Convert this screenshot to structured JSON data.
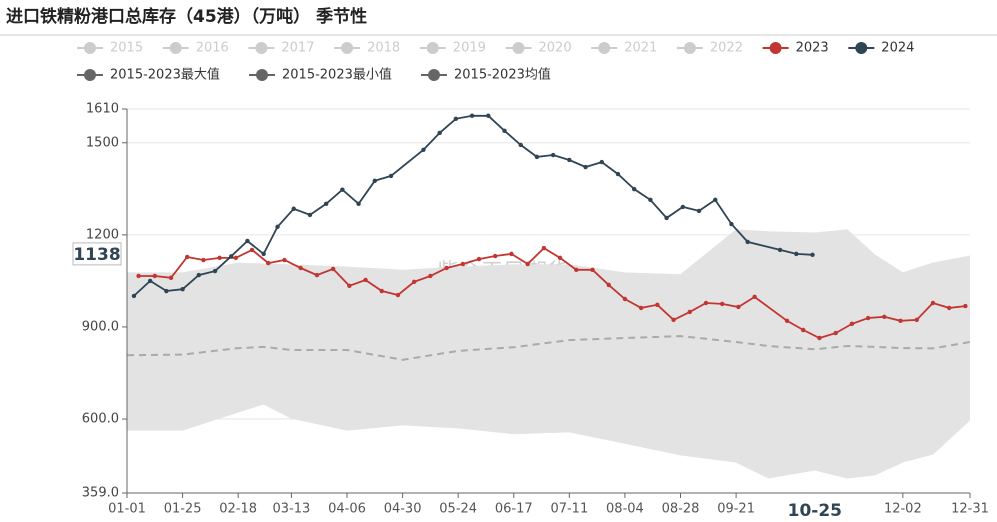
{
  "chart_data": {
    "type": "line",
    "title": "进口铁精粉港口总库存（45港）（万吨） 季节性",
    "watermark": "紫金天风期货",
    "ylim": [
      359,
      1610
    ],
    "yticks": [
      {
        "value": 359,
        "label": "359.0"
      },
      {
        "value": 600,
        "label": "600.0"
      },
      {
        "value": 900,
        "label": "900.0"
      },
      1200,
      1500,
      1610
    ],
    "xticks": [
      "01-01",
      "01-25",
      "02-18",
      "03-13",
      "04-06",
      "04-30",
      "05-24",
      "06-17",
      "07-11",
      "08-04",
      "08-28",
      "09-21",
      "12-02",
      "12-31"
    ],
    "grid": true,
    "axis_pointer": {
      "x": "10-25",
      "y": 1138
    },
    "series": [
      {
        "name": "2015",
        "color": "#cccccc",
        "hidden": true
      },
      {
        "name": "2016",
        "color": "#cccccc",
        "hidden": true
      },
      {
        "name": "2017",
        "color": "#cccccc",
        "hidden": true
      },
      {
        "name": "2018",
        "color": "#cccccc",
        "hidden": true
      },
      {
        "name": "2019",
        "color": "#cccccc",
        "hidden": true
      },
      {
        "name": "2020",
        "color": "#cccccc",
        "hidden": true
      },
      {
        "name": "2021",
        "color": "#cccccc",
        "hidden": true
      },
      {
        "name": "2022",
        "color": "#cccccc",
        "hidden": true
      },
      {
        "name": "2023",
        "color": "#c23531",
        "x": [
          "01-06",
          "01-13",
          "01-20",
          "01-27",
          "02-03",
          "02-10",
          "02-17",
          "02-24",
          "03-03",
          "03-10",
          "03-17",
          "03-24",
          "03-31",
          "04-07",
          "04-14",
          "04-21",
          "04-28",
          "05-05",
          "05-12",
          "05-19",
          "05-26",
          "06-02",
          "06-09",
          "06-16",
          "06-23",
          "06-30",
          "07-07",
          "07-14",
          "07-21",
          "07-28",
          "08-04",
          "08-11",
          "08-18",
          "08-25",
          "09-01",
          "09-08",
          "09-15",
          "09-22",
          "09-29",
          "10-13",
          "10-20",
          "10-27",
          "11-03",
          "11-10",
          "11-17",
          "11-24",
          "12-01",
          "12-08",
          "12-15",
          "12-22",
          "12-29"
        ],
        "values": [
          1066,
          1066,
          1060,
          1128,
          1118,
          1125,
          1125,
          1151,
          1108,
          1118,
          1092,
          1069,
          1089,
          1034,
          1053,
          1017,
          1004,
          1047,
          1066,
          1092,
          1105,
          1121,
          1131,
          1138,
          1105,
          1157,
          1125,
          1086,
          1086,
          1037,
          991,
          962,
          972,
          923,
          949,
          978,
          975,
          965,
          998,
          920,
          890,
          864,
          880,
          910,
          929,
          933,
          920,
          923,
          978,
          962,
          968
        ]
      },
      {
        "name": "2024",
        "color": "#2f4554",
        "x": [
          "01-04",
          "01-11",
          "01-18",
          "01-25",
          "02-01",
          "02-08",
          "02-15",
          "02-22",
          "02-29",
          "03-07",
          "03-14",
          "03-21",
          "03-28",
          "04-04",
          "04-11",
          "04-18",
          "04-25",
          "05-09",
          "05-16",
          "05-23",
          "05-30",
          "06-06",
          "06-13",
          "06-20",
          "06-27",
          "07-04",
          "07-11",
          "07-18",
          "07-25",
          "08-01",
          "08-08",
          "08-15",
          "08-22",
          "08-29",
          "09-05",
          "09-12",
          "09-19",
          "09-26",
          "10-10",
          "10-17",
          "10-24"
        ],
        "values": [
          1001,
          1050,
          1017,
          1023,
          1069,
          1082,
          1130,
          1180,
          1138,
          1226,
          1285,
          1265,
          1301,
          1347,
          1301,
          1376,
          1392,
          1477,
          1532,
          1578,
          1588,
          1588,
          1539,
          1493,
          1454,
          1460,
          1444,
          1421,
          1437,
          1398,
          1349,
          1314,
          1255,
          1291,
          1278,
          1314,
          1235,
          1177,
          1151,
          1138,
          1135
        ]
      },
      {
        "name": "2015-2023最大值",
        "color": "#666666",
        "band": "upper",
        "fill": "#e3e3e3",
        "x": [
          "01-01",
          "01-25",
          "02-18",
          "03-01",
          "03-13",
          "04-06",
          "04-30",
          "05-24",
          "06-17",
          "07-11",
          "08-04",
          "08-28",
          "09-21",
          "10-05",
          "10-25",
          "11-08",
          "11-20",
          "12-02",
          "12-15",
          "12-31"
        ],
        "values": [
          1076,
          1076,
          1108,
          1105,
          1102,
          1095,
          1085,
          1095,
          1102,
          1102,
          1076,
          1070,
          1216,
          1210,
          1206,
          1216,
          1134,
          1076,
          1108,
          1131
        ]
      },
      {
        "name": "2015-2023最小值",
        "color": "#666666",
        "band": "lower",
        "fill": "#e3e3e3",
        "x": [
          "01-01",
          "01-25",
          "02-18",
          "03-01",
          "03-13",
          "04-06",
          "04-30",
          "05-24",
          "06-17",
          "07-11",
          "08-04",
          "08-28",
          "09-21",
          "10-05",
          "10-25",
          "11-08",
          "11-20",
          "12-02",
          "12-15",
          "12-31"
        ],
        "values": [
          564,
          564,
          623,
          649,
          603,
          564,
          581,
          571,
          552,
          558,
          521,
          483,
          460,
          408,
          434,
          408,
          418,
          460,
          486,
          597
        ]
      },
      {
        "name": "2015-2023均值",
        "color": "#666666",
        "line_color": "#aaaaaa",
        "dashed": true,
        "x": [
          "01-01",
          "01-25",
          "02-18",
          "03-01",
          "03-13",
          "04-06",
          "04-30",
          "05-24",
          "06-17",
          "07-11",
          "08-04",
          "08-28",
          "09-21",
          "10-05",
          "10-25",
          "11-08",
          "11-20",
          "12-02",
          "12-15",
          "12-31"
        ],
        "values": [
          808,
          810,
          831,
          835,
          825,
          825,
          793,
          822,
          834,
          857,
          864,
          870,
          851,
          838,
          827,
          838,
          835,
          831,
          830,
          851
        ]
      }
    ]
  }
}
